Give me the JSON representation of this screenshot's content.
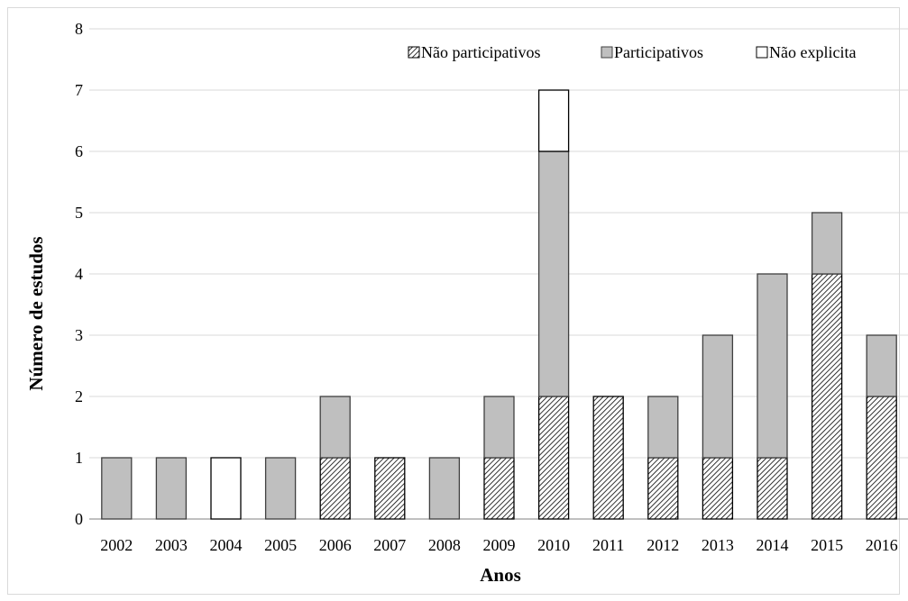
{
  "chart_data": {
    "type": "bar",
    "stacked": true,
    "title": "",
    "xlabel": "Anos",
    "ylabel": "Número de estudos",
    "ylim": [
      0,
      8
    ],
    "yticks": [
      "0",
      "1",
      "2",
      "3",
      "4",
      "5",
      "6",
      "7",
      "8"
    ],
    "grid": true,
    "legend_position": "top-right",
    "categories": [
      "2002",
      "2003",
      "2004",
      "2005",
      "2006",
      "2007",
      "2008",
      "2009",
      "2010",
      "2011",
      "2012",
      "2013",
      "2014",
      "2015",
      "2016"
    ],
    "series": [
      {
        "name": "Não participativos",
        "fill": "hatched",
        "color": "#000000",
        "values": [
          0,
          0,
          0,
          0,
          1,
          1,
          0,
          1,
          2,
          2,
          1,
          1,
          1,
          4,
          2
        ]
      },
      {
        "name": "Participativos",
        "fill": "solid",
        "color": "#bfbfbf",
        "values": [
          1,
          1,
          0,
          1,
          1,
          0,
          1,
          1,
          4,
          0,
          1,
          2,
          3,
          1,
          1
        ]
      },
      {
        "name": "Não explicita",
        "fill": "solid",
        "color": "#ffffff",
        "values": [
          0,
          0,
          1,
          0,
          0,
          0,
          0,
          0,
          1,
          0,
          0,
          0,
          0,
          0,
          0
        ]
      }
    ],
    "colors": {
      "bar_outline": "#404040",
      "gridline": "#d9d9d9",
      "axis": "#808080"
    }
  }
}
